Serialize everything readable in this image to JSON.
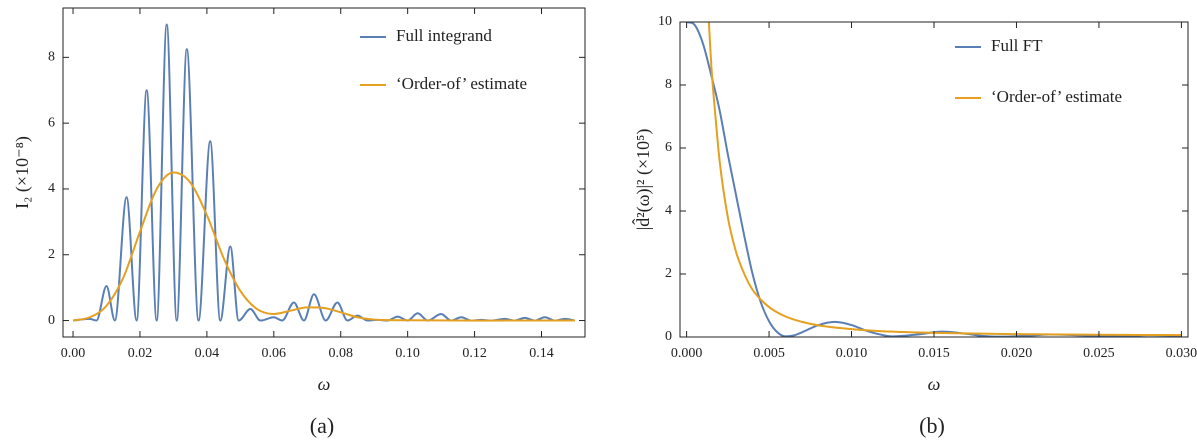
{
  "chart_data": [
    {
      "type": "line",
      "caption": "(a)",
      "xlabel": "ω",
      "ylabel": "I₂ (×10⁻⁸)",
      "xlim": [
        -0.003,
        0.153
      ],
      "ylim": [
        -0.5,
        9.5
      ],
      "xticks": [
        {
          "value": 0,
          "label": "0.00"
        },
        {
          "value": 0.02,
          "label": "0.02"
        },
        {
          "value": 0.04,
          "label": "0.04"
        },
        {
          "value": 0.06,
          "label": "0.06"
        },
        {
          "value": 0.08,
          "label": "0.08"
        },
        {
          "value": 0.1,
          "label": "0.10"
        },
        {
          "value": 0.12,
          "label": "0.12"
        },
        {
          "value": 0.14,
          "label": "0.14"
        }
      ],
      "yticks": [
        0,
        2,
        4,
        6,
        8
      ],
      "legend": "upper right",
      "series": [
        {
          "name": "Full integrand",
          "color": "#5a7fb5",
          "x": [
            0,
            0.005,
            0.007,
            0.01,
            0.0125,
            0.016,
            0.019,
            0.022,
            0.025,
            0.028,
            0.031,
            0.034,
            0.0375,
            0.041,
            0.044,
            0.047,
            0.0495,
            0.053,
            0.056,
            0.06,
            0.0625,
            0.066,
            0.069,
            0.072,
            0.0755,
            0.079,
            0.082,
            0.085,
            0.088,
            0.091,
            0.094,
            0.097,
            0.1,
            0.103,
            0.106,
            0.11,
            0.113,
            0.116,
            0.119,
            0.122,
            0.125,
            0.129,
            0.132,
            0.135,
            0.138,
            0.141,
            0.144,
            0.147,
            0.15
          ],
          "values": [
            0,
            0.05,
            0,
            1.05,
            0,
            3.75,
            0,
            7.0,
            0,
            9.0,
            0,
            8.25,
            0,
            5.45,
            0,
            2.25,
            0,
            0.35,
            0,
            0.1,
            0,
            0.55,
            0,
            0.8,
            0,
            0.55,
            0,
            0.15,
            0,
            0.02,
            0,
            0.12,
            0,
            0.22,
            0,
            0.2,
            0,
            0.1,
            0,
            0.02,
            0,
            0.05,
            0,
            0.08,
            0,
            0.1,
            0,
            0.05,
            0
          ]
        },
        {
          "name": "‘Order-of’ estimate",
          "color": "#e5a020",
          "x": [
            0,
            0.005,
            0.01,
            0.015,
            0.02,
            0.025,
            0.03,
            0.035,
            0.04,
            0.045,
            0.05,
            0.055,
            0.06,
            0.065,
            0.07,
            0.075,
            0.08,
            0.085,
            0.09,
            0.1,
            0.15
          ],
          "values": [
            0,
            0.1,
            0.45,
            1.3,
            2.7,
            4.0,
            4.5,
            4.2,
            3.2,
            1.9,
            0.9,
            0.35,
            0.2,
            0.3,
            0.4,
            0.38,
            0.25,
            0.1,
            0.03,
            0.01,
            0
          ]
        }
      ]
    },
    {
      "type": "line",
      "caption": "(b)",
      "xlabel": "ω",
      "ylabel": "|d̂²(ω)|² (×10⁵)",
      "xlim": [
        -0.0004,
        0.0304
      ],
      "ylim": [
        0,
        10
      ],
      "xticks": [
        {
          "value": 0,
          "label": "0.000"
        },
        {
          "value": 0.005,
          "label": "0.005"
        },
        {
          "value": 0.01,
          "label": "0.010"
        },
        {
          "value": 0.015,
          "label": "0.015"
        },
        {
          "value": 0.02,
          "label": "0.020"
        },
        {
          "value": 0.025,
          "label": "0.025"
        },
        {
          "value": 0.03,
          "label": "0.030"
        }
      ],
      "yticks": [
        0,
        2,
        4,
        6,
        8,
        10
      ],
      "legend": "upper right",
      "series": [
        {
          "name": "Full FT",
          "color": "#5a7fb5",
          "x": [
            0,
            0.0005,
            0.001,
            0.0015,
            0.002,
            0.0025,
            0.003,
            0.0035,
            0.004,
            0.0045,
            0.005,
            0.0055,
            0.006,
            0.0065,
            0.007,
            0.008,
            0.009,
            0.01,
            0.011,
            0.012,
            0.0125,
            0.014,
            0.0155,
            0.017,
            0.018,
            0.019,
            0.021,
            0.022,
            0.024,
            0.025,
            0.027,
            0.028,
            0.03
          ],
          "values": [
            10,
            9.9,
            9.3,
            8.3,
            7.2,
            5.8,
            4.5,
            3.2,
            2.0,
            1.1,
            0.5,
            0.15,
            0.02,
            0.05,
            0.15,
            0.38,
            0.48,
            0.38,
            0.18,
            0.05,
            0.02,
            0.08,
            0.17,
            0.1,
            0.03,
            0.01,
            0.05,
            0.08,
            0.05,
            0.02,
            0.04,
            0.06,
            0.04
          ]
        },
        {
          "name": "‘Order-of’ estimate",
          "color": "#e5a020",
          "x": [
            0.00135,
            0.0015,
            0.00175,
            0.002,
            0.0025,
            0.003,
            0.0035,
            0.004,
            0.005,
            0.006,
            0.007,
            0.008,
            0.01,
            0.012,
            0.015,
            0.02,
            0.025,
            0.03
          ],
          "values": [
            10,
            8.6,
            7.0,
            5.6,
            3.8,
            2.7,
            2.0,
            1.5,
            0.95,
            0.65,
            0.48,
            0.37,
            0.25,
            0.18,
            0.13,
            0.09,
            0.07,
            0.06
          ]
        }
      ]
    }
  ]
}
